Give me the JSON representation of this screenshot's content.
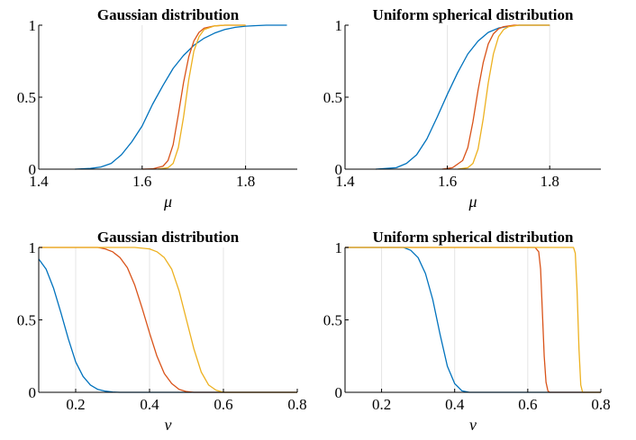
{
  "colors": {
    "blue": "#0072BD",
    "red": "#D95319",
    "yellow": "#EDB120",
    "grid": "#e4e4e4",
    "axis": "#000000"
  },
  "chart_data": [
    {
      "type": "line",
      "title": "Gaussian distribution",
      "xlabel": "μ",
      "ylabel": "",
      "xlim": [
        1.4,
        1.9
      ],
      "ylim": [
        0,
        1
      ],
      "xticks": [
        "1.4",
        "1.6",
        "1.8"
      ],
      "yticks": [
        "0",
        "0.5",
        "1"
      ],
      "grid": "vertical",
      "series": [
        {
          "color": "#0072BD",
          "x": [
            1.47,
            1.5,
            1.52,
            1.54,
            1.56,
            1.58,
            1.6,
            1.62,
            1.64,
            1.66,
            1.68,
            1.7,
            1.72,
            1.74,
            1.76,
            1.78,
            1.8,
            1.82,
            1.84,
            1.88
          ],
          "y": [
            0,
            0.005,
            0.015,
            0.04,
            0.1,
            0.19,
            0.3,
            0.45,
            0.58,
            0.7,
            0.79,
            0.86,
            0.91,
            0.945,
            0.97,
            0.985,
            0.993,
            0.997,
            1,
            1
          ]
        },
        {
          "color": "#D95319",
          "x": [
            1.6,
            1.62,
            1.64,
            1.65,
            1.66,
            1.67,
            1.68,
            1.69,
            1.7,
            1.71,
            1.72,
            1.74,
            1.76,
            1.8
          ],
          "y": [
            0,
            0.002,
            0.02,
            0.06,
            0.17,
            0.38,
            0.6,
            0.78,
            0.89,
            0.95,
            0.98,
            0.995,
            1,
            1
          ]
        },
        {
          "color": "#EDB120",
          "x": [
            1.63,
            1.65,
            1.66,
            1.67,
            1.68,
            1.69,
            1.7,
            1.71,
            1.72,
            1.74,
            1.76,
            1.8
          ],
          "y": [
            0,
            0.01,
            0.04,
            0.15,
            0.36,
            0.62,
            0.82,
            0.92,
            0.97,
            0.995,
            1,
            1
          ]
        }
      ]
    },
    {
      "type": "line",
      "title": "Uniform spherical distribution",
      "xlabel": "μ",
      "ylabel": "",
      "xlim": [
        1.4,
        1.9
      ],
      "ylim": [
        0,
        1
      ],
      "xticks": [
        "1.4",
        "1.6",
        "1.8"
      ],
      "yticks": [
        "0",
        "0.5",
        "1"
      ],
      "grid": "vertical",
      "series": [
        {
          "color": "#0072BD",
          "x": [
            1.46,
            1.5,
            1.52,
            1.54,
            1.56,
            1.58,
            1.6,
            1.62,
            1.64,
            1.66,
            1.68,
            1.7,
            1.72,
            1.74,
            1.76,
            1.8
          ],
          "y": [
            0,
            0.01,
            0.04,
            0.1,
            0.21,
            0.36,
            0.52,
            0.67,
            0.8,
            0.89,
            0.95,
            0.98,
            0.993,
            1,
            1,
            1
          ]
        },
        {
          "color": "#D95319",
          "x": [
            1.59,
            1.61,
            1.63,
            1.64,
            1.65,
            1.66,
            1.67,
            1.68,
            1.69,
            1.7,
            1.71,
            1.73,
            1.75,
            1.8
          ],
          "y": [
            0,
            0.01,
            0.06,
            0.15,
            0.33,
            0.55,
            0.74,
            0.87,
            0.94,
            0.975,
            0.99,
            1,
            1,
            1
          ]
        },
        {
          "color": "#EDB120",
          "x": [
            1.62,
            1.64,
            1.65,
            1.66,
            1.67,
            1.68,
            1.69,
            1.7,
            1.71,
            1.72,
            1.74,
            1.8
          ],
          "y": [
            0,
            0.01,
            0.04,
            0.14,
            0.35,
            0.6,
            0.8,
            0.92,
            0.97,
            0.99,
            1,
            1
          ]
        }
      ]
    },
    {
      "type": "line",
      "title": "Gaussian distribution",
      "xlabel": "ν",
      "ylabel": "",
      "xlim": [
        0.1,
        0.8
      ],
      "ylim": [
        0,
        1
      ],
      "xticks": [
        "0.2",
        "0.4",
        "0.6",
        "0.8"
      ],
      "yticks": [
        "0",
        "0.5",
        "1"
      ],
      "grid": "vertical",
      "series": [
        {
          "color": "#0072BD",
          "x": [
            0.1,
            0.12,
            0.14,
            0.16,
            0.18,
            0.2,
            0.22,
            0.24,
            0.26,
            0.28,
            0.3,
            0.32,
            0.36,
            0.8
          ],
          "y": [
            0.92,
            0.85,
            0.72,
            0.55,
            0.37,
            0.21,
            0.11,
            0.05,
            0.02,
            0.008,
            0.002,
            0,
            0,
            0
          ]
        },
        {
          "color": "#D95319",
          "x": [
            0.1,
            0.26,
            0.28,
            0.3,
            0.32,
            0.34,
            0.36,
            0.38,
            0.4,
            0.42,
            0.44,
            0.46,
            0.48,
            0.5,
            0.52,
            0.8
          ],
          "y": [
            1,
            1,
            0.99,
            0.97,
            0.93,
            0.86,
            0.74,
            0.58,
            0.41,
            0.25,
            0.13,
            0.06,
            0.02,
            0.005,
            0,
            0
          ]
        },
        {
          "color": "#EDB120",
          "x": [
            0.1,
            0.36,
            0.4,
            0.42,
            0.44,
            0.46,
            0.48,
            0.5,
            0.52,
            0.54,
            0.56,
            0.58,
            0.6,
            0.8
          ],
          "y": [
            1,
            1,
            0.99,
            0.97,
            0.93,
            0.85,
            0.7,
            0.5,
            0.3,
            0.14,
            0.05,
            0.015,
            0,
            0
          ]
        }
      ]
    },
    {
      "type": "line",
      "title": "Uniform spherical distribution",
      "xlabel": "ν",
      "ylabel": "",
      "xlim": [
        0.1,
        0.8
      ],
      "ylim": [
        0,
        1
      ],
      "xticks": [
        "0.2",
        "0.4",
        "0.6",
        "0.8"
      ],
      "yticks": [
        "0",
        "0.5",
        "1"
      ],
      "grid": "vertical",
      "series": [
        {
          "color": "#0072BD",
          "x": [
            0.1,
            0.26,
            0.28,
            0.3,
            0.32,
            0.34,
            0.36,
            0.38,
            0.4,
            0.42,
            0.44,
            0.8
          ],
          "y": [
            1,
            1,
            0.98,
            0.93,
            0.82,
            0.64,
            0.4,
            0.18,
            0.06,
            0.01,
            0,
            0
          ]
        },
        {
          "color": "#D95319",
          "x": [
            0.1,
            0.62,
            0.63,
            0.635,
            0.64,
            0.645,
            0.65,
            0.655,
            0.66,
            0.8
          ],
          "y": [
            1,
            1,
            0.97,
            0.85,
            0.55,
            0.25,
            0.07,
            0.01,
            0,
            0
          ]
        },
        {
          "color": "#EDB120",
          "x": [
            0.1,
            0.725,
            0.73,
            0.735,
            0.74,
            0.745,
            0.75,
            0.8
          ],
          "y": [
            1,
            1,
            0.96,
            0.7,
            0.3,
            0.05,
            0,
            0
          ]
        }
      ]
    }
  ]
}
